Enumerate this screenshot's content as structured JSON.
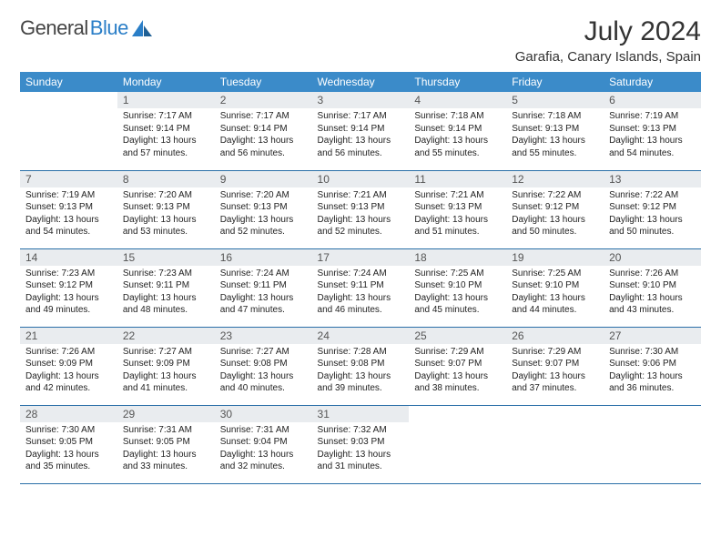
{
  "brand": {
    "part1": "General",
    "part2": "Blue"
  },
  "title": "July 2024",
  "location": "Garafia, Canary Islands, Spain",
  "colors": {
    "header_bg": "#3b8bc9",
    "daynum_bg": "#e9ecef",
    "row_border": "#2a6fa8"
  },
  "daynames": [
    "Sunday",
    "Monday",
    "Tuesday",
    "Wednesday",
    "Thursday",
    "Friday",
    "Saturday"
  ],
  "weeks": [
    [
      {
        "n": "",
        "sr": "",
        "ss": "",
        "dl": "",
        "empty": true
      },
      {
        "n": "1",
        "sr": "Sunrise: 7:17 AM",
        "ss": "Sunset: 9:14 PM",
        "dl": "Daylight: 13 hours and 57 minutes."
      },
      {
        "n": "2",
        "sr": "Sunrise: 7:17 AM",
        "ss": "Sunset: 9:14 PM",
        "dl": "Daylight: 13 hours and 56 minutes."
      },
      {
        "n": "3",
        "sr": "Sunrise: 7:17 AM",
        "ss": "Sunset: 9:14 PM",
        "dl": "Daylight: 13 hours and 56 minutes."
      },
      {
        "n": "4",
        "sr": "Sunrise: 7:18 AM",
        "ss": "Sunset: 9:14 PM",
        "dl": "Daylight: 13 hours and 55 minutes."
      },
      {
        "n": "5",
        "sr": "Sunrise: 7:18 AM",
        "ss": "Sunset: 9:13 PM",
        "dl": "Daylight: 13 hours and 55 minutes."
      },
      {
        "n": "6",
        "sr": "Sunrise: 7:19 AM",
        "ss": "Sunset: 9:13 PM",
        "dl": "Daylight: 13 hours and 54 minutes."
      }
    ],
    [
      {
        "n": "7",
        "sr": "Sunrise: 7:19 AM",
        "ss": "Sunset: 9:13 PM",
        "dl": "Daylight: 13 hours and 54 minutes."
      },
      {
        "n": "8",
        "sr": "Sunrise: 7:20 AM",
        "ss": "Sunset: 9:13 PM",
        "dl": "Daylight: 13 hours and 53 minutes."
      },
      {
        "n": "9",
        "sr": "Sunrise: 7:20 AM",
        "ss": "Sunset: 9:13 PM",
        "dl": "Daylight: 13 hours and 52 minutes."
      },
      {
        "n": "10",
        "sr": "Sunrise: 7:21 AM",
        "ss": "Sunset: 9:13 PM",
        "dl": "Daylight: 13 hours and 52 minutes."
      },
      {
        "n": "11",
        "sr": "Sunrise: 7:21 AM",
        "ss": "Sunset: 9:13 PM",
        "dl": "Daylight: 13 hours and 51 minutes."
      },
      {
        "n": "12",
        "sr": "Sunrise: 7:22 AM",
        "ss": "Sunset: 9:12 PM",
        "dl": "Daylight: 13 hours and 50 minutes."
      },
      {
        "n": "13",
        "sr": "Sunrise: 7:22 AM",
        "ss": "Sunset: 9:12 PM",
        "dl": "Daylight: 13 hours and 50 minutes."
      }
    ],
    [
      {
        "n": "14",
        "sr": "Sunrise: 7:23 AM",
        "ss": "Sunset: 9:12 PM",
        "dl": "Daylight: 13 hours and 49 minutes."
      },
      {
        "n": "15",
        "sr": "Sunrise: 7:23 AM",
        "ss": "Sunset: 9:11 PM",
        "dl": "Daylight: 13 hours and 48 minutes."
      },
      {
        "n": "16",
        "sr": "Sunrise: 7:24 AM",
        "ss": "Sunset: 9:11 PM",
        "dl": "Daylight: 13 hours and 47 minutes."
      },
      {
        "n": "17",
        "sr": "Sunrise: 7:24 AM",
        "ss": "Sunset: 9:11 PM",
        "dl": "Daylight: 13 hours and 46 minutes."
      },
      {
        "n": "18",
        "sr": "Sunrise: 7:25 AM",
        "ss": "Sunset: 9:10 PM",
        "dl": "Daylight: 13 hours and 45 minutes."
      },
      {
        "n": "19",
        "sr": "Sunrise: 7:25 AM",
        "ss": "Sunset: 9:10 PM",
        "dl": "Daylight: 13 hours and 44 minutes."
      },
      {
        "n": "20",
        "sr": "Sunrise: 7:26 AM",
        "ss": "Sunset: 9:10 PM",
        "dl": "Daylight: 13 hours and 43 minutes."
      }
    ],
    [
      {
        "n": "21",
        "sr": "Sunrise: 7:26 AM",
        "ss": "Sunset: 9:09 PM",
        "dl": "Daylight: 13 hours and 42 minutes."
      },
      {
        "n": "22",
        "sr": "Sunrise: 7:27 AM",
        "ss": "Sunset: 9:09 PM",
        "dl": "Daylight: 13 hours and 41 minutes."
      },
      {
        "n": "23",
        "sr": "Sunrise: 7:27 AM",
        "ss": "Sunset: 9:08 PM",
        "dl": "Daylight: 13 hours and 40 minutes."
      },
      {
        "n": "24",
        "sr": "Sunrise: 7:28 AM",
        "ss": "Sunset: 9:08 PM",
        "dl": "Daylight: 13 hours and 39 minutes."
      },
      {
        "n": "25",
        "sr": "Sunrise: 7:29 AM",
        "ss": "Sunset: 9:07 PM",
        "dl": "Daylight: 13 hours and 38 minutes."
      },
      {
        "n": "26",
        "sr": "Sunrise: 7:29 AM",
        "ss": "Sunset: 9:07 PM",
        "dl": "Daylight: 13 hours and 37 minutes."
      },
      {
        "n": "27",
        "sr": "Sunrise: 7:30 AM",
        "ss": "Sunset: 9:06 PM",
        "dl": "Daylight: 13 hours and 36 minutes."
      }
    ],
    [
      {
        "n": "28",
        "sr": "Sunrise: 7:30 AM",
        "ss": "Sunset: 9:05 PM",
        "dl": "Daylight: 13 hours and 35 minutes."
      },
      {
        "n": "29",
        "sr": "Sunrise: 7:31 AM",
        "ss": "Sunset: 9:05 PM",
        "dl": "Daylight: 13 hours and 33 minutes."
      },
      {
        "n": "30",
        "sr": "Sunrise: 7:31 AM",
        "ss": "Sunset: 9:04 PM",
        "dl": "Daylight: 13 hours and 32 minutes."
      },
      {
        "n": "31",
        "sr": "Sunrise: 7:32 AM",
        "ss": "Sunset: 9:03 PM",
        "dl": "Daylight: 13 hours and 31 minutes."
      },
      {
        "n": "",
        "sr": "",
        "ss": "",
        "dl": "",
        "empty": true
      },
      {
        "n": "",
        "sr": "",
        "ss": "",
        "dl": "",
        "empty": true
      },
      {
        "n": "",
        "sr": "",
        "ss": "",
        "dl": "",
        "empty": true
      }
    ]
  ]
}
